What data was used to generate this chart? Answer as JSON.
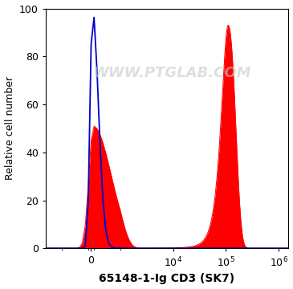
{
  "title": "",
  "xlabel": "65148-1-Ig CD3 (SK7)",
  "ylabel": "Relative cell number",
  "ylim": [
    0,
    100
  ],
  "yticks": [
    0,
    20,
    40,
    60,
    80,
    100
  ],
  "blue_color": "#0000cc",
  "red_color": "#ff0000",
  "background_color": "#ffffff",
  "watermark_text": "WWW.PTGLAB.COM",
  "watermark_color": "#c8c8c8",
  "watermark_alpha": 0.6,
  "figsize": [
    3.65,
    3.6
  ],
  "dpi": 100,
  "xlabel_fontsize": 10,
  "ylabel_fontsize": 9,
  "tick_fontsize": 9,
  "watermark_fontsize": 13
}
